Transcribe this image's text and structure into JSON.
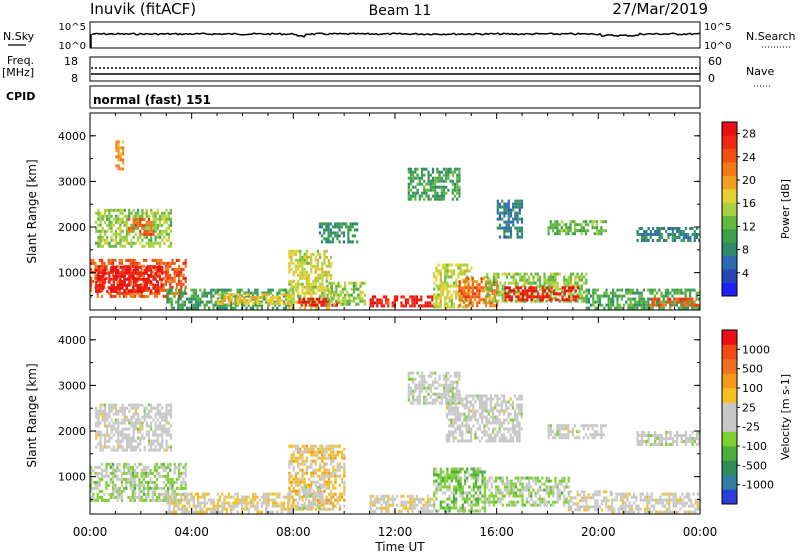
{
  "header": {
    "station": "Inuvik (fitACF)",
    "beam": "Beam 11",
    "date": "27/Mar/2019"
  },
  "strips": {
    "nsky_label": "N.Sky",
    "nsky_ticks": [
      "10^5",
      "10^0"
    ],
    "nsearch_label": "N.Search",
    "nsearch_ticks": [
      "10^5",
      "10^0"
    ],
    "freq_label": "Freq.",
    "freq_unit": "[MHz]",
    "freq_ticks": [
      "18",
      "8"
    ],
    "nave_label": "Nave",
    "nave_ticks": [
      "60",
      "0"
    ],
    "cpid_label": "CPID",
    "cpid_value": "normal (fast) 151"
  },
  "colors": {
    "power": [
      "#2020ff",
      "#2646b8",
      "#2e6ab0",
      "#2f8a6a",
      "#3aa04a",
      "#64b83c",
      "#a8d040",
      "#e8d030",
      "#f2a020",
      "#f27a18",
      "#f25010",
      "#ef2a10",
      "#e81010"
    ],
    "velocity": [
      "#2a3fd8",
      "#2e7c9e",
      "#2e8a58",
      "#4cae3a",
      "#7ed030",
      "#c8c8c8",
      "#c8c8c8",
      "#f4c020",
      "#f49a18",
      "#f07020",
      "#f04a18",
      "#e81010"
    ]
  },
  "chart_data": [
    {
      "type": "heatmap",
      "title": "",
      "ylabel": "Slant Range [km]",
      "xlabel": "Time UT",
      "x_ticks": [
        "00:00",
        "04:00",
        "08:00",
        "12:00",
        "16:00",
        "20:00",
        "00:00"
      ],
      "y_ticks": [
        "1000",
        "2000",
        "3000",
        "4000"
      ],
      "xlim": [
        0,
        24
      ],
      "ylim": [
        180,
        4500
      ],
      "colorbar": {
        "label": "Power [dB]",
        "ticks": [
          "4",
          "8",
          "12",
          "16",
          "20",
          "24",
          "28"
        ],
        "range": [
          0,
          30
        ]
      },
      "regions": [
        {
          "t0": 0.0,
          "t1": 3.8,
          "r0": 450,
          "r1": 1300,
          "value": 24
        },
        {
          "t0": 0.2,
          "t1": 2.8,
          "r0": 600,
          "r1": 1150,
          "value": 29
        },
        {
          "t0": 0.2,
          "t1": 3.2,
          "r0": 1600,
          "r1": 2400,
          "value": 14
        },
        {
          "t0": 1.5,
          "t1": 2.5,
          "r0": 1850,
          "r1": 2200,
          "value": 24
        },
        {
          "t0": 3.0,
          "t1": 8.0,
          "r0": 250,
          "r1": 650,
          "value": 10
        },
        {
          "t0": 5.0,
          "t1": 8.0,
          "r0": 350,
          "r1": 550,
          "value": 18
        },
        {
          "t0": 7.8,
          "t1": 9.5,
          "r0": 250,
          "r1": 1500,
          "value": 16
        },
        {
          "t0": 8.2,
          "t1": 9.8,
          "r0": 300,
          "r1": 450,
          "value": 28
        },
        {
          "t0": 9.3,
          "t1": 10.8,
          "r0": 300,
          "r1": 800,
          "value": 14
        },
        {
          "t0": 11.0,
          "t1": 13.5,
          "r0": 250,
          "r1": 500,
          "value": 28
        },
        {
          "t0": 13.5,
          "t1": 15.0,
          "r0": 250,
          "r1": 1200,
          "value": 16
        },
        {
          "t0": 14.5,
          "t1": 16.0,
          "r0": 300,
          "r1": 900,
          "value": 23
        },
        {
          "t0": 15.5,
          "t1": 19.5,
          "r0": 350,
          "r1": 1000,
          "value": 14
        },
        {
          "t0": 16.3,
          "t1": 19.2,
          "r0": 400,
          "r1": 700,
          "value": 28
        },
        {
          "t0": 19.5,
          "t1": 24.0,
          "r0": 250,
          "r1": 650,
          "value": 11
        },
        {
          "t0": 22.0,
          "t1": 24.0,
          "r0": 300,
          "r1": 450,
          "value": 24
        },
        {
          "t0": 16.0,
          "t1": 17.0,
          "r0": 1800,
          "r1": 2600,
          "value": 7
        },
        {
          "t0": 18.0,
          "t1": 20.3,
          "r0": 1850,
          "r1": 2150,
          "value": 12
        },
        {
          "t0": 21.5,
          "t1": 24.0,
          "r0": 1700,
          "r1": 2000,
          "value": 8
        },
        {
          "t0": 12.5,
          "t1": 14.5,
          "r0": 2600,
          "r1": 3300,
          "value": 10
        },
        {
          "t0": 9.0,
          "t1": 10.5,
          "r0": 1700,
          "r1": 2100,
          "value": 9
        },
        {
          "t0": 1.0,
          "t1": 1.3,
          "r0": 3300,
          "r1": 3900,
          "value": 20
        }
      ]
    },
    {
      "type": "heatmap",
      "title": "",
      "ylabel": "Slant Range [km]",
      "xlabel": "Time UT",
      "x_ticks": [
        "00:00",
        "04:00",
        "08:00",
        "12:00",
        "16:00",
        "20:00",
        "00:00"
      ],
      "y_ticks": [
        "1000",
        "2000",
        "3000",
        "4000"
      ],
      "xlim": [
        0,
        24
      ],
      "ylim": [
        180,
        4500
      ],
      "colorbar": {
        "label": "Velocity [m s-1]",
        "ticks": [
          "1000",
          "500",
          "100",
          "25",
          "-25",
          "-100",
          "-500",
          "-1000"
        ],
        "range": [
          -1200,
          1200
        ]
      },
      "regions": [
        {
          "t0": 0.0,
          "t1": 3.8,
          "r0": 450,
          "r1": 1300,
          "value": -200
        },
        {
          "t0": 0.2,
          "t1": 3.2,
          "r0": 1600,
          "r1": 2600,
          "value": 0
        },
        {
          "t0": 3.0,
          "t1": 8.0,
          "r0": 250,
          "r1": 650,
          "value": 150
        },
        {
          "t0": 7.8,
          "t1": 10.0,
          "r0": 300,
          "r1": 1700,
          "value": 250
        },
        {
          "t0": 8.2,
          "t1": 9.2,
          "r0": 300,
          "r1": 800,
          "value": 0
        },
        {
          "t0": 11.0,
          "t1": 13.5,
          "r0": 250,
          "r1": 600,
          "value": 80
        },
        {
          "t0": 13.5,
          "t1": 15.5,
          "r0": 250,
          "r1": 1200,
          "value": -300
        },
        {
          "t0": 15.5,
          "t1": 18.8,
          "r0": 350,
          "r1": 1000,
          "value": -200
        },
        {
          "t0": 18.8,
          "t1": 20.5,
          "r0": 300,
          "r1": 700,
          "value": 60
        },
        {
          "t0": 20.5,
          "t1": 24.0,
          "r0": 250,
          "r1": 650,
          "value": 40
        },
        {
          "t0": 14.0,
          "t1": 17.0,
          "r0": 1800,
          "r1": 2800,
          "value": -10
        },
        {
          "t0": 18.0,
          "t1": 20.3,
          "r0": 1850,
          "r1": 2150,
          "value": 0
        },
        {
          "t0": 21.5,
          "t1": 24.0,
          "r0": 1700,
          "r1": 2000,
          "value": -40
        },
        {
          "t0": 12.5,
          "t1": 14.5,
          "r0": 2600,
          "r1": 3300,
          "value": -60
        }
      ]
    }
  ]
}
